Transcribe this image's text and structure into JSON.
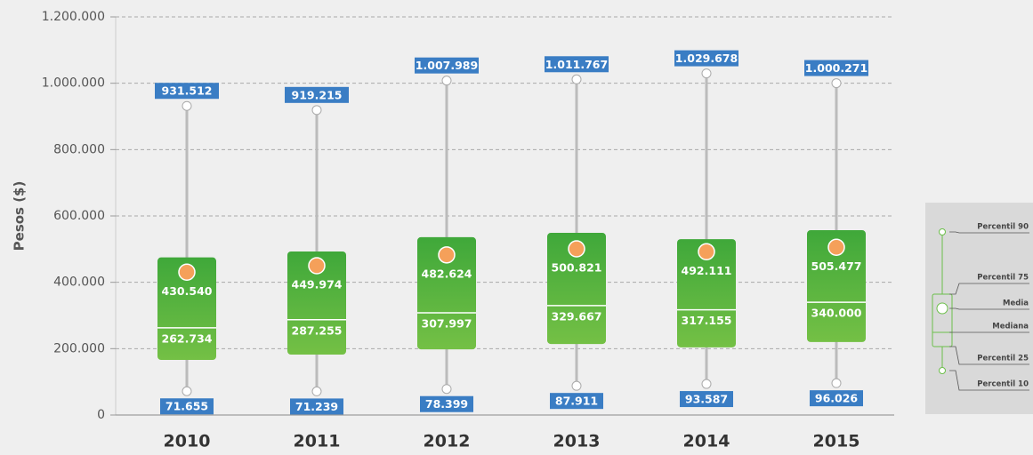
{
  "chart_data": {
    "type": "box",
    "y_label": "Pesos ($)",
    "categories": [
      "2010",
      "2011",
      "2012",
      "2013",
      "2014",
      "2015"
    ],
    "series": [
      {
        "name": "Percentil 90",
        "color": "#ffffff",
        "values": [
          931512,
          919215,
          1007989,
          1011767,
          1029678,
          1000271
        ],
        "value_labels": [
          "931.512",
          "919.215",
          "1.007.989",
          "1.011.767",
          "1.029.678",
          "1.000.271"
        ]
      },
      {
        "name": "Percentil 75",
        "color": "#4caf3e",
        "values": [
          475000,
          493000,
          536000,
          549000,
          530000,
          557000
        ]
      },
      {
        "name": "Media",
        "color": "#f5a05a",
        "values": [
          430540,
          449974,
          482624,
          500821,
          492111,
          505477
        ],
        "value_labels": [
          "430.540",
          "449.974",
          "482.624",
          "500.821",
          "492.111",
          "505.477"
        ]
      },
      {
        "name": "Mediana",
        "color": "#ffffff",
        "values": [
          262734,
          287255,
          307997,
          329667,
          317155,
          340000
        ],
        "value_labels": [
          "262.734",
          "287.255",
          "307.997",
          "329.667",
          "317.155",
          "340.000"
        ]
      },
      {
        "name": "Percentil 25",
        "color": "#4caf3e",
        "values": [
          166000,
          182000,
          198000,
          214000,
          204000,
          220000
        ]
      },
      {
        "name": "Percentil 10",
        "color": "#ffffff",
        "values": [
          71655,
          71239,
          78399,
          87911,
          93587,
          96026
        ],
        "value_labels": [
          "71.655",
          "71.239",
          "78.399",
          "87.911",
          "93.587",
          "96.026"
        ]
      }
    ],
    "ylim": [
      0,
      1200000
    ],
    "yticks": [
      0,
      {
        "value": 200000,
        "label": "200.000"
      },
      {
        "value": 400000,
        "label": "400.000"
      },
      {
        "value": 600000,
        "label": "600.000"
      },
      {
        "value": 800000,
        "label": "800.000"
      },
      {
        "value": 1000000,
        "label": "1.000.000"
      },
      {
        "value": 1200000,
        "label": "1.200.000"
      }
    ],
    "grid": true,
    "label_color": "#3a7dc4",
    "whisker_color": "#bbbbbb"
  }
}
